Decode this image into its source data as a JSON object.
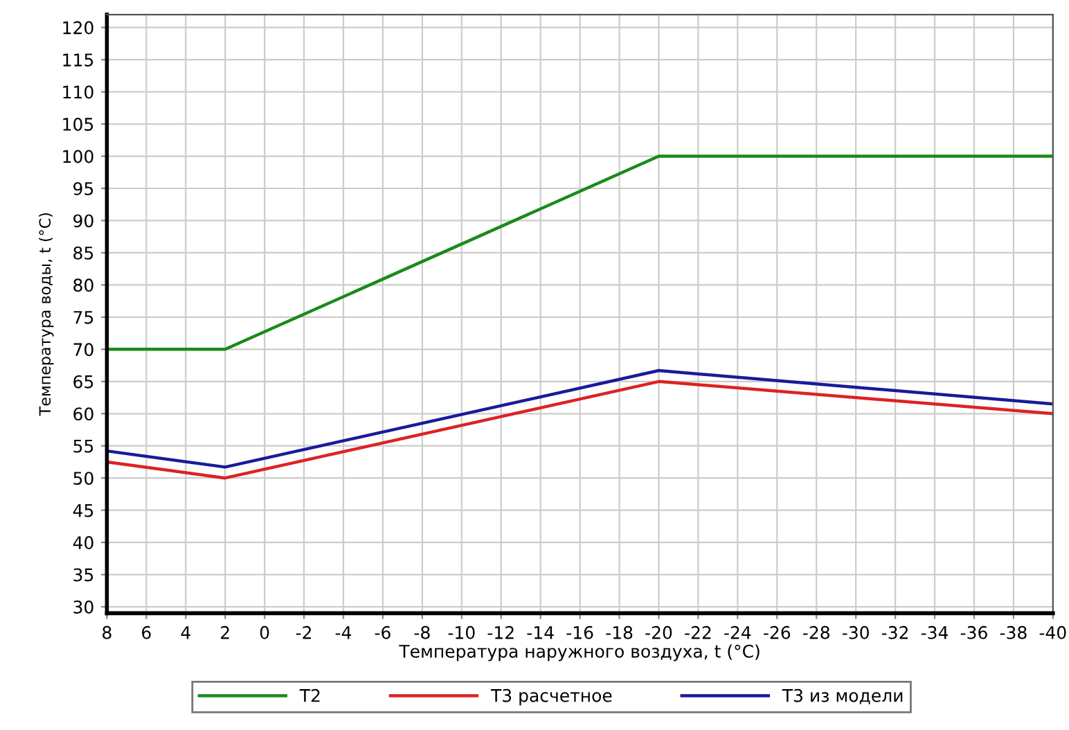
{
  "chart_data": {
    "type": "line",
    "xlabel": "Температура наружного воздуха, t (°C)",
    "ylabel": "Температура воды, t (°C)",
    "xlim": [
      8,
      -40
    ],
    "xticks": [
      8,
      6,
      4,
      2,
      0,
      -2,
      -4,
      -6,
      -8,
      -10,
      -12,
      -14,
      -16,
      -18,
      -20,
      -22,
      -24,
      -26,
      -28,
      -30,
      -32,
      -34,
      -36,
      -38,
      -40
    ],
    "ylim": [
      29,
      122
    ],
    "yticks": [
      30,
      35,
      40,
      45,
      50,
      55,
      60,
      65,
      70,
      75,
      80,
      85,
      90,
      95,
      100,
      105,
      110,
      115,
      120
    ],
    "grid": true,
    "legend": "bottom",
    "marker": "none",
    "line_style": "solid",
    "series": [
      {
        "name": "T2",
        "color": "#1a8a1a",
        "x": [
          8,
          2,
          -20,
          -40
        ],
        "values": [
          70,
          70,
          100,
          100
        ]
      },
      {
        "name": "T3 расчетное",
        "color": "#dd2222",
        "x": [
          8,
          2,
          -20,
          -40
        ],
        "values": [
          52.5,
          50,
          65,
          60
        ]
      },
      {
        "name": "T3 из модели",
        "color": "#1a1a99",
        "x": [
          8,
          2,
          -20,
          -40
        ],
        "values": [
          54.2,
          51.7,
          66.7,
          61.5
        ]
      }
    ]
  }
}
